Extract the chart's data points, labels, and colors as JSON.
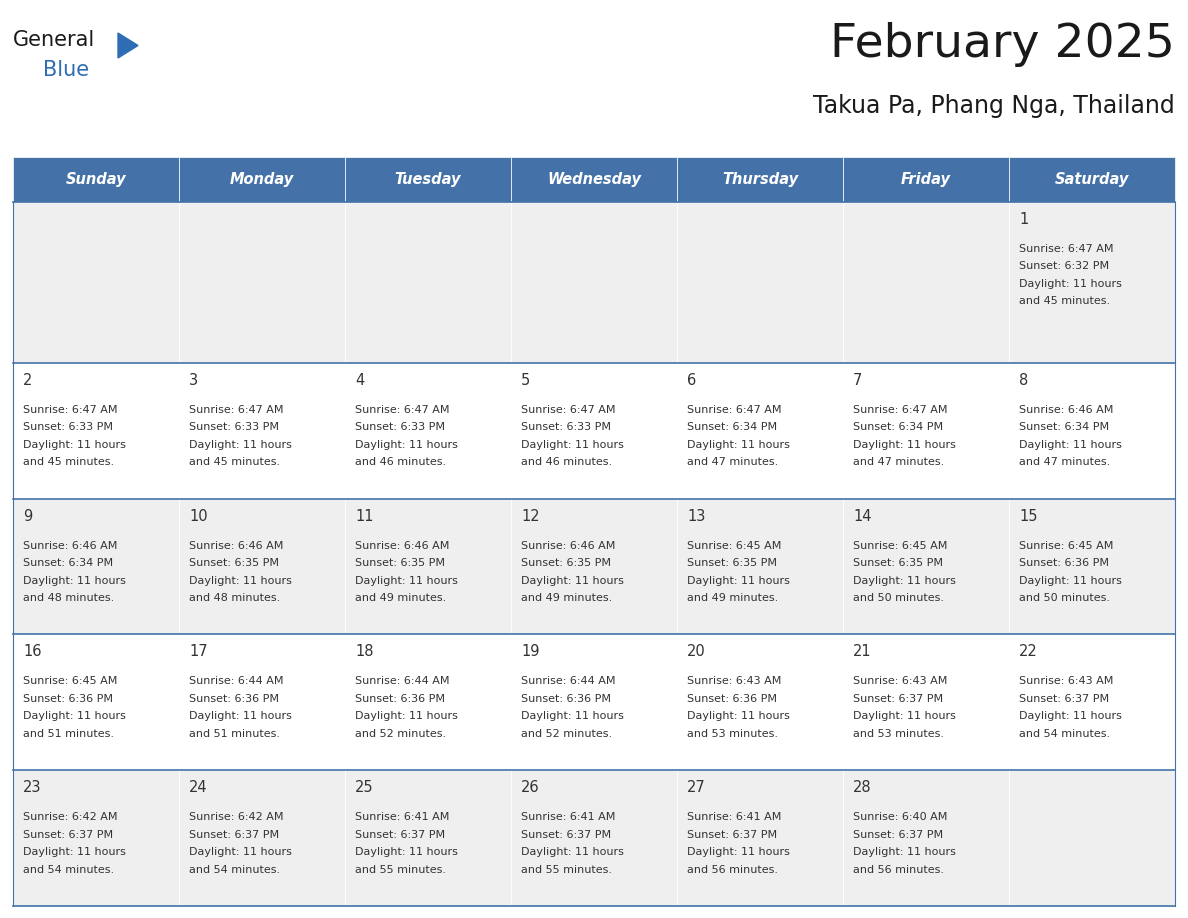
{
  "title": "February 2025",
  "subtitle": "Takua Pa, Phang Nga, Thailand",
  "days_of_week": [
    "Sunday",
    "Monday",
    "Tuesday",
    "Wednesday",
    "Thursday",
    "Friday",
    "Saturday"
  ],
  "header_bg": "#4472a8",
  "header_text": "#ffffff",
  "cell_bg_alt": "#efefef",
  "cell_bg_white": "#ffffff",
  "divider_color": "#4472a8",
  "text_color": "#333333",
  "title_color": "#1a1a1a",
  "logo_general_color": "#1a1a1a",
  "logo_blue_color": "#2e6db4",
  "logo_triangle_color": "#2e6db4",
  "calendar_data": [
    [
      null,
      null,
      null,
      null,
      null,
      null,
      {
        "day": 1,
        "sunrise": "6:47 AM",
        "sunset": "6:32 PM",
        "daylight": "11 hours\nand 45 minutes."
      }
    ],
    [
      {
        "day": 2,
        "sunrise": "6:47 AM",
        "sunset": "6:33 PM",
        "daylight": "11 hours\nand 45 minutes."
      },
      {
        "day": 3,
        "sunrise": "6:47 AM",
        "sunset": "6:33 PM",
        "daylight": "11 hours\nand 45 minutes."
      },
      {
        "day": 4,
        "sunrise": "6:47 AM",
        "sunset": "6:33 PM",
        "daylight": "11 hours\nand 46 minutes."
      },
      {
        "day": 5,
        "sunrise": "6:47 AM",
        "sunset": "6:33 PM",
        "daylight": "11 hours\nand 46 minutes."
      },
      {
        "day": 6,
        "sunrise": "6:47 AM",
        "sunset": "6:34 PM",
        "daylight": "11 hours\nand 47 minutes."
      },
      {
        "day": 7,
        "sunrise": "6:47 AM",
        "sunset": "6:34 PM",
        "daylight": "11 hours\nand 47 minutes."
      },
      {
        "day": 8,
        "sunrise": "6:46 AM",
        "sunset": "6:34 PM",
        "daylight": "11 hours\nand 47 minutes."
      }
    ],
    [
      {
        "day": 9,
        "sunrise": "6:46 AM",
        "sunset": "6:34 PM",
        "daylight": "11 hours\nand 48 minutes."
      },
      {
        "day": 10,
        "sunrise": "6:46 AM",
        "sunset": "6:35 PM",
        "daylight": "11 hours\nand 48 minutes."
      },
      {
        "day": 11,
        "sunrise": "6:46 AM",
        "sunset": "6:35 PM",
        "daylight": "11 hours\nand 49 minutes."
      },
      {
        "day": 12,
        "sunrise": "6:46 AM",
        "sunset": "6:35 PM",
        "daylight": "11 hours\nand 49 minutes."
      },
      {
        "day": 13,
        "sunrise": "6:45 AM",
        "sunset": "6:35 PM",
        "daylight": "11 hours\nand 49 minutes."
      },
      {
        "day": 14,
        "sunrise": "6:45 AM",
        "sunset": "6:35 PM",
        "daylight": "11 hours\nand 50 minutes."
      },
      {
        "day": 15,
        "sunrise": "6:45 AM",
        "sunset": "6:36 PM",
        "daylight": "11 hours\nand 50 minutes."
      }
    ],
    [
      {
        "day": 16,
        "sunrise": "6:45 AM",
        "sunset": "6:36 PM",
        "daylight": "11 hours\nand 51 minutes."
      },
      {
        "day": 17,
        "sunrise": "6:44 AM",
        "sunset": "6:36 PM",
        "daylight": "11 hours\nand 51 minutes."
      },
      {
        "day": 18,
        "sunrise": "6:44 AM",
        "sunset": "6:36 PM",
        "daylight": "11 hours\nand 52 minutes."
      },
      {
        "day": 19,
        "sunrise": "6:44 AM",
        "sunset": "6:36 PM",
        "daylight": "11 hours\nand 52 minutes."
      },
      {
        "day": 20,
        "sunrise": "6:43 AM",
        "sunset": "6:36 PM",
        "daylight": "11 hours\nand 53 minutes."
      },
      {
        "day": 21,
        "sunrise": "6:43 AM",
        "sunset": "6:37 PM",
        "daylight": "11 hours\nand 53 minutes."
      },
      {
        "day": 22,
        "sunrise": "6:43 AM",
        "sunset": "6:37 PM",
        "daylight": "11 hours\nand 54 minutes."
      }
    ],
    [
      {
        "day": 23,
        "sunrise": "6:42 AM",
        "sunset": "6:37 PM",
        "daylight": "11 hours\nand 54 minutes."
      },
      {
        "day": 24,
        "sunrise": "6:42 AM",
        "sunset": "6:37 PM",
        "daylight": "11 hours\nand 54 minutes."
      },
      {
        "day": 25,
        "sunrise": "6:41 AM",
        "sunset": "6:37 PM",
        "daylight": "11 hours\nand 55 minutes."
      },
      {
        "day": 26,
        "sunrise": "6:41 AM",
        "sunset": "6:37 PM",
        "daylight": "11 hours\nand 55 minutes."
      },
      {
        "day": 27,
        "sunrise": "6:41 AM",
        "sunset": "6:37 PM",
        "daylight": "11 hours\nand 56 minutes."
      },
      {
        "day": 28,
        "sunrise": "6:40 AM",
        "sunset": "6:37 PM",
        "daylight": "11 hours\nand 56 minutes."
      },
      null
    ]
  ]
}
